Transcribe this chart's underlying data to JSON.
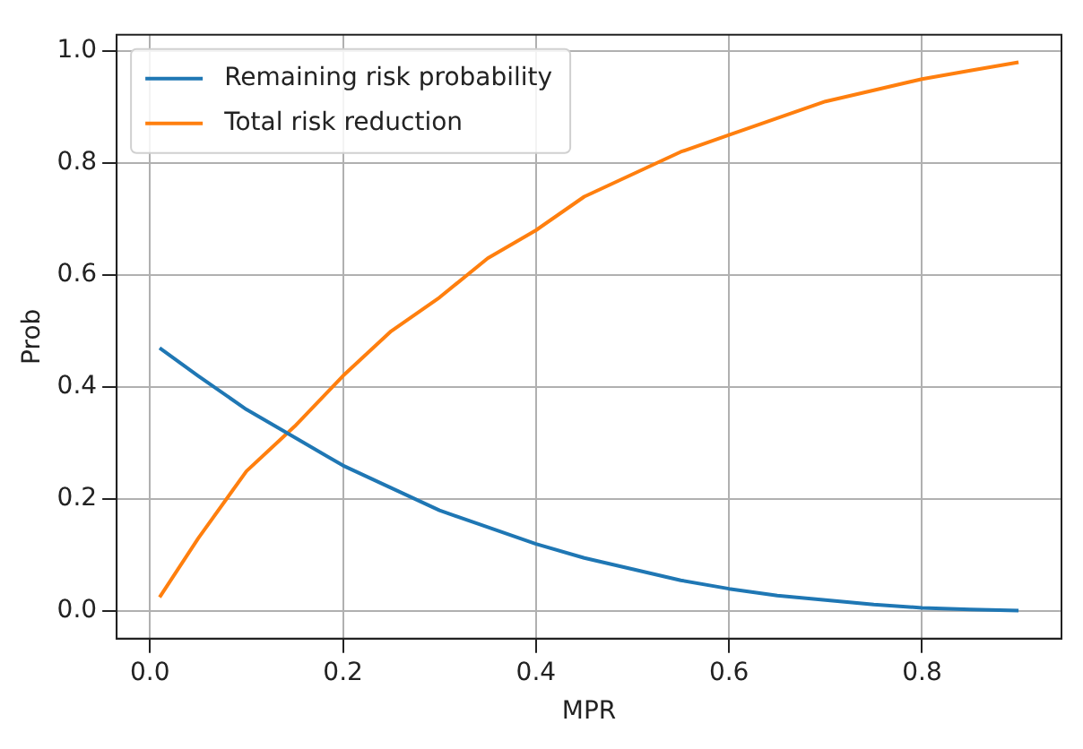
{
  "chart_data": {
    "type": "line",
    "xlabel": "MPR",
    "ylabel": "Prob",
    "xlim": [
      -0.0345,
      0.9445
    ],
    "xticks": [
      {
        "value": 0,
        "label": "0.0"
      },
      {
        "value": 0.2,
        "label": "0.2"
      },
      {
        "value": 0.4,
        "label": "0.4"
      },
      {
        "value": 0.6,
        "label": "0.6"
      },
      {
        "value": 0.8,
        "label": "0.8"
      }
    ],
    "ylim": [
      -0.049,
      1.029
    ],
    "yticks": [
      {
        "value": 0,
        "label": "0.0"
      },
      {
        "value": 0.2,
        "label": "0.2"
      },
      {
        "value": 0.4,
        "label": "0.4"
      },
      {
        "value": 0.6,
        "label": "0.6"
      },
      {
        "value": 0.8,
        "label": "0.8"
      },
      {
        "value": 1,
        "label": "1.0"
      }
    ],
    "x": [
      0.01,
      0.05,
      0.1,
      0.15,
      0.2,
      0.25,
      0.3,
      0.35,
      0.4,
      0.45,
      0.5,
      0.55,
      0.6,
      0.65,
      0.7,
      0.75,
      0.8,
      0.85,
      0.9
    ],
    "series": [
      {
        "name": "Remaining risk probability",
        "color": "#1f77b4",
        "values": [
          0.47,
          0.42,
          0.36,
          0.31,
          0.26,
          0.22,
          0.18,
          0.15,
          0.12,
          0.095,
          0.075,
          0.055,
          0.04,
          0.028,
          0.02,
          0.012,
          0.006,
          0.003,
          0.001
        ]
      },
      {
        "name": "Total risk reduction",
        "color": "#ff7f0e",
        "values": [
          0.025,
          0.13,
          0.25,
          0.33,
          0.42,
          0.5,
          0.56,
          0.63,
          0.68,
          0.74,
          0.78,
          0.82,
          0.85,
          0.88,
          0.91,
          0.93,
          0.95,
          0.965,
          0.98
        ]
      }
    ],
    "grid": true,
    "legend": "top left",
    "marker": "none",
    "line_style": "solid"
  }
}
